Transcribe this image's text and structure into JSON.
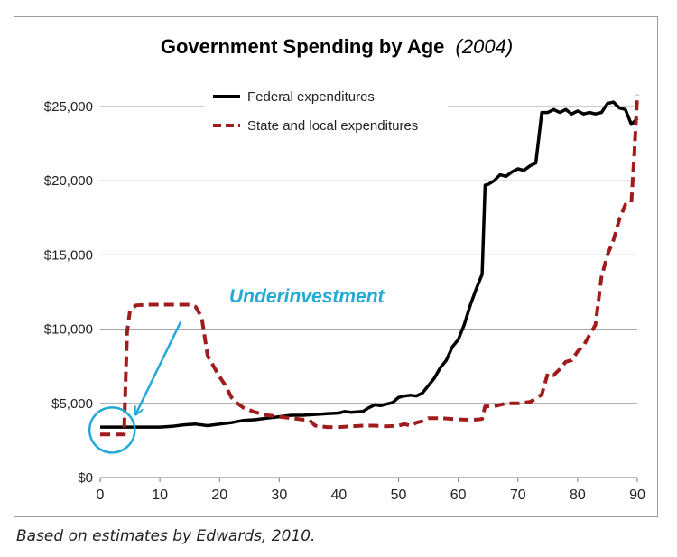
{
  "chart_data": {
    "type": "line",
    "title": "Government Spending by Age",
    "title_suffix": "(2004)",
    "xlabel": "",
    "ylabel": "",
    "xlim": [
      0,
      90
    ],
    "ylim": [
      0,
      25000
    ],
    "x_ticks": [
      0,
      10,
      20,
      30,
      40,
      50,
      60,
      70,
      80,
      90
    ],
    "y_ticks": [
      0,
      5000,
      10000,
      15000,
      20000,
      25000
    ],
    "y_tick_labels": [
      "$0",
      "$5,000",
      "$10,000",
      "$15,000",
      "$20,000",
      "$25,000"
    ],
    "grid": "horizontal",
    "legend_position": "top-center",
    "series": [
      {
        "name": "Federal expenditures",
        "style": "solid",
        "color": "#000000",
        "points": [
          [
            0,
            3400
          ],
          [
            5,
            3400
          ],
          [
            10,
            3400
          ],
          [
            12,
            3450
          ],
          [
            14,
            3550
          ],
          [
            16,
            3600
          ],
          [
            18,
            3500
          ],
          [
            20,
            3600
          ],
          [
            22,
            3700
          ],
          [
            24,
            3850
          ],
          [
            26,
            3900
          ],
          [
            28,
            4000
          ],
          [
            30,
            4100
          ],
          [
            32,
            4200
          ],
          [
            34,
            4200
          ],
          [
            36,
            4250
          ],
          [
            38,
            4300
          ],
          [
            40,
            4350
          ],
          [
            41,
            4450
          ],
          [
            42,
            4400
          ],
          [
            44,
            4450
          ],
          [
            45,
            4700
          ],
          [
            46,
            4900
          ],
          [
            47,
            4850
          ],
          [
            48,
            4950
          ],
          [
            49,
            5050
          ],
          [
            50,
            5400
          ],
          [
            51,
            5500
          ],
          [
            52,
            5550
          ],
          [
            53,
            5500
          ],
          [
            54,
            5700
          ],
          [
            55,
            6200
          ],
          [
            56,
            6700
          ],
          [
            57,
            7400
          ],
          [
            58,
            7900
          ],
          [
            59,
            8800
          ],
          [
            60,
            9300
          ],
          [
            61,
            10300
          ],
          [
            62,
            11600
          ],
          [
            63,
            12700
          ],
          [
            64,
            13700
          ],
          [
            64.5,
            19700
          ],
          [
            65,
            19750
          ],
          [
            66,
            20000
          ],
          [
            67,
            20400
          ],
          [
            68,
            20300
          ],
          [
            69,
            20600
          ],
          [
            70,
            20800
          ],
          [
            71,
            20700
          ],
          [
            72,
            21000
          ],
          [
            73,
            21200
          ],
          [
            74,
            24600
          ],
          [
            75,
            24600
          ],
          [
            76,
            24800
          ],
          [
            77,
            24600
          ],
          [
            78,
            24800
          ],
          [
            79,
            24500
          ],
          [
            80,
            24700
          ],
          [
            81,
            24500
          ],
          [
            82,
            24600
          ],
          [
            83,
            24500
          ],
          [
            84,
            24600
          ],
          [
            85,
            25200
          ],
          [
            86,
            25300
          ],
          [
            87,
            24900
          ],
          [
            88,
            24800
          ],
          [
            89,
            23800
          ],
          [
            90,
            24200
          ]
        ]
      },
      {
        "name": "State and local expenditures",
        "style": "dashed",
        "color": "#a01c1c",
        "points": [
          [
            0,
            2900
          ],
          [
            4,
            2900
          ],
          [
            4.5,
            9800
          ],
          [
            5,
            11300
          ],
          [
            6,
            11600
          ],
          [
            8,
            11650
          ],
          [
            10,
            11650
          ],
          [
            13,
            11650
          ],
          [
            15,
            11650
          ],
          [
            16,
            11500
          ],
          [
            17,
            10800
          ],
          [
            18,
            8200
          ],
          [
            19,
            7500
          ],
          [
            20,
            6800
          ],
          [
            21,
            6200
          ],
          [
            22,
            5400
          ],
          [
            23,
            5000
          ],
          [
            24,
            4700
          ],
          [
            26,
            4400
          ],
          [
            28,
            4200
          ],
          [
            30,
            4100
          ],
          [
            32,
            4000
          ],
          [
            34,
            3900
          ],
          [
            35,
            3900
          ],
          [
            36,
            3500
          ],
          [
            38,
            3400
          ],
          [
            40,
            3400
          ],
          [
            42,
            3450
          ],
          [
            44,
            3500
          ],
          [
            46,
            3500
          ],
          [
            48,
            3450
          ],
          [
            50,
            3500
          ],
          [
            51,
            3600
          ],
          [
            52,
            3500
          ],
          [
            53,
            3700
          ],
          [
            54,
            3800
          ],
          [
            55,
            4000
          ],
          [
            57,
            4000
          ],
          [
            59,
            3950
          ],
          [
            61,
            3900
          ],
          [
            63,
            3900
          ],
          [
            64,
            3950
          ],
          [
            64.5,
            4800
          ],
          [
            66,
            4800
          ],
          [
            68,
            5000
          ],
          [
            70,
            5000
          ],
          [
            72,
            5100
          ],
          [
            73,
            5300
          ],
          [
            74,
            5600
          ],
          [
            75,
            7000
          ],
          [
            76,
            6900
          ],
          [
            77,
            7300
          ],
          [
            78,
            7800
          ],
          [
            79,
            7900
          ],
          [
            80,
            8500
          ],
          [
            81,
            8900
          ],
          [
            82,
            9600
          ],
          [
            83,
            10300
          ],
          [
            84,
            13500
          ],
          [
            85,
            15000
          ],
          [
            86,
            16000
          ],
          [
            87,
            17400
          ],
          [
            88,
            18400
          ],
          [
            89,
            18500
          ],
          [
            89.5,
            21800
          ],
          [
            90,
            25800
          ]
        ]
      }
    ],
    "annotations": [
      {
        "type": "label",
        "text": "Underinvestment",
        "color": "#22a9d6"
      },
      {
        "type": "circle",
        "x": 2,
        "y": 3200,
        "color": "#22a9d6"
      },
      {
        "type": "arrow",
        "from": [
          13.5,
          10500
        ],
        "to": [
          6,
          4300
        ],
        "color": "#22a9d6"
      }
    ]
  },
  "footnote": "Based on estimates by Edwards, 2010."
}
